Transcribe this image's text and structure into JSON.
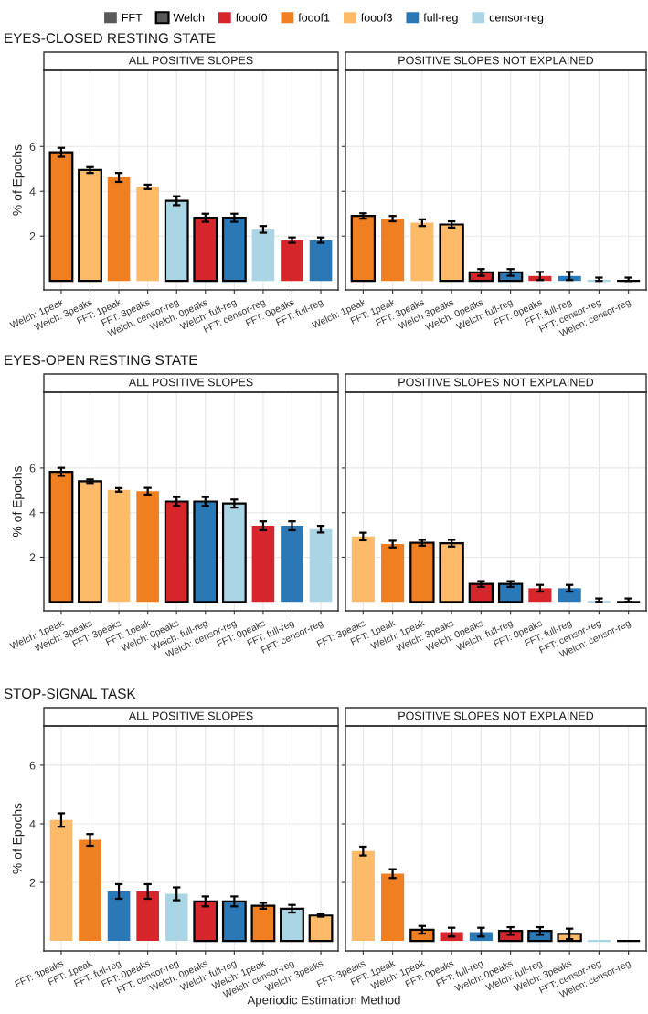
{
  "chart_data": [
    {
      "type": "other",
      "categories": [
        "FFT",
        "Welch",
        "fooof0",
        "fooof1",
        "fooof3",
        "full-reg",
        "censor-reg"
      ],
      "colors": [
        "#595959",
        "#595959",
        "#d7262b",
        "#f07f22",
        "#fdbb6a",
        "#2b78b6",
        "#a9d5e5"
      ]
    },
    {
      "type": "bar",
      "subtitle": "EYES-CLOSED RESTING STATE",
      "title": "ALL POSITIVE SLOPES",
      "ylabel": "% of Epochs",
      "grid": true,
      "ylim": [
        -0.4,
        9.4
      ],
      "yticks": [
        2,
        4,
        6
      ],
      "categories": [
        "Welch: 1peak",
        "Welch: 3peaks",
        "FFT: 1peak",
        "FFT: 3peaks",
        "Welch: censor-reg",
        "Welch: 0peaks",
        "Welch: full-reg",
        "FFT: censor-reg",
        "FFT: 0peaks",
        "FFT: full-reg"
      ],
      "series": [
        {
          "values": [
            null,
            null,
            4.62,
            4.2,
            null,
            null,
            null,
            2.3,
            1.82,
            1.82
          ],
          "colors": [
            null,
            null,
            "#f07f22",
            "#fdbb6a",
            null,
            null,
            null,
            "#a9d5e5",
            "#d7262b",
            "#2b78b6"
          ],
          "errors": [
            null,
            null,
            0.2,
            0.1,
            null,
            null,
            null,
            0.15,
            0.12,
            0.12
          ]
        },
        {
          "values": [
            5.74,
            4.95,
            null,
            null,
            3.58,
            2.82,
            2.82,
            null,
            null,
            null
          ],
          "colors": [
            "#f07f22",
            "#fdbb6a",
            null,
            null,
            "#a9d5e5",
            "#d7262b",
            "#2b78b6",
            null,
            null,
            null
          ],
          "errors": [
            0.2,
            0.13,
            null,
            null,
            0.2,
            0.18,
            0.18,
            null,
            null,
            null
          ]
        }
      ]
    },
    {
      "type": "bar",
      "title": "POSITIVE SLOPES NOT EXPLAINED",
      "grid": true,
      "tick_labels": "x",
      "ylim": [
        -0.4,
        9.4
      ],
      "yticks": [
        2,
        4,
        6
      ],
      "categories": [
        "Welch: 1peak",
        "FFT: 1peak",
        "FFT: 3peaks",
        "Welch 3peaks",
        "Welch: 0peaks",
        "Welch: full-reg",
        "FFT: 0peaks",
        "FFT: full-reg",
        "FFT: censor-reg",
        "Welch: censor-reg"
      ],
      "series": [
        {
          "values": [
            null,
            2.78,
            2.6,
            null,
            null,
            null,
            0.22,
            0.22,
            0,
            null
          ],
          "colors": [
            null,
            "#f07f22",
            "#fdbb6a",
            null,
            null,
            null,
            "#d7262b",
            "#2b78b6",
            "#a9d5e5",
            null
          ],
          "errors": [
            null,
            0.12,
            0.15,
            null,
            null,
            null,
            0.18,
            0.18,
            [
              0,
              0.15
            ],
            null
          ]
        },
        {
          "values": [
            2.9,
            null,
            null,
            2.52,
            0.38,
            0.38,
            null,
            null,
            null,
            0
          ],
          "colors": [
            "#f07f22",
            null,
            null,
            "#fdbb6a",
            "#d7262b",
            "#2b78b6",
            null,
            null,
            null,
            "#000000"
          ],
          "errors": [
            0.12,
            null,
            null,
            0.14,
            0.15,
            0.15,
            null,
            null,
            null,
            [
              0,
              0.15
            ]
          ]
        }
      ]
    },
    {
      "type": "bar",
      "subtitle": "EYES-OPEN RESTING STATE",
      "title": "ALL POSITIVE SLOPES",
      "ylabel": "% of Epochs",
      "grid": true,
      "ylim": [
        -0.4,
        9.4
      ],
      "yticks": [
        2,
        4,
        6
      ],
      "categories": [
        "Welch: 1peak",
        "Welch: 3peaks",
        "FFT: 3peaks",
        "FFT: 1peak",
        "Welch: 0peaks",
        "Welch: full-reg",
        "Welch: censor-reg",
        "FFT: 0peaks",
        "FFT: full-reg",
        "FFT: censor-reg"
      ],
      "series": [
        {
          "values": [
            null,
            null,
            5.02,
            4.96,
            null,
            null,
            null,
            3.41,
            3.41,
            3.26
          ],
          "colors": [
            null,
            null,
            "#fdbb6a",
            "#f07f22",
            null,
            null,
            null,
            "#d7262b",
            "#2b78b6",
            "#a9d5e5"
          ],
          "errors": [
            null,
            null,
            0.08,
            0.15,
            null,
            null,
            null,
            0.2,
            0.2,
            0.15
          ]
        },
        {
          "values": [
            5.83,
            5.41,
            null,
            null,
            4.5,
            4.5,
            4.41,
            null,
            null,
            null
          ],
          "colors": [
            "#f07f22",
            "#fdbb6a",
            null,
            null,
            "#d7262b",
            "#2b78b6",
            "#a9d5e5",
            null,
            null,
            null
          ],
          "errors": [
            0.18,
            0.08,
            null,
            null,
            0.2,
            0.2,
            0.18,
            null,
            null,
            null
          ]
        }
      ]
    },
    {
      "type": "bar",
      "title": "POSITIVE SLOPES NOT EXPLAINED",
      "grid": true,
      "tick_labels": "x",
      "ylim": [
        -0.4,
        9.4
      ],
      "yticks": [
        2,
        4,
        6
      ],
      "categories": [
        "FFT: 3peaks",
        "FFT: 1peak",
        "Welch: 1peak",
        "Welch: 3peaks",
        "Welch: 0peaks",
        "Welch: full-reg",
        "FFT: 0peaks",
        "FFT: full-reg",
        "FFT: censor-reg",
        "Welch: censor-reg"
      ],
      "series": [
        {
          "values": [
            2.93,
            2.59,
            null,
            null,
            null,
            null,
            0.61,
            0.61,
            0,
            null
          ],
          "colors": [
            "#fdbb6a",
            "#f07f22",
            null,
            null,
            null,
            null,
            "#d7262b",
            "#2b78b6",
            "#a9d5e5",
            null
          ],
          "errors": [
            0.17,
            0.15,
            null,
            null,
            null,
            null,
            0.15,
            0.15,
            [
              0,
              0.15
            ],
            null
          ]
        },
        {
          "values": [
            null,
            null,
            2.65,
            2.63,
            0.8,
            0.8,
            null,
            null,
            null,
            0
          ],
          "colors": [
            null,
            null,
            "#f07f22",
            "#fdbb6a",
            "#d7262b",
            "#2b78b6",
            null,
            null,
            null,
            "#000000"
          ],
          "errors": [
            null,
            null,
            0.13,
            0.15,
            0.13,
            0.13,
            null,
            null,
            null,
            [
              0,
              0.15
            ]
          ]
        }
      ]
    },
    {
      "type": "bar",
      "subtitle": "STOP-SIGNAL TASK",
      "title": "ALL POSITIVE SLOPES",
      "ylabel": "% of Epochs",
      "xlabel": "Aperiodic Estimation Method",
      "grid": true,
      "ylim": [
        -0.34,
        7.34
      ],
      "yticks": [
        2,
        4,
        6
      ],
      "categories": [
        "FFT: 3peaks",
        "FFT: 1peak",
        "FFT: full-reg",
        "FFT: 0peaks",
        "FFT: censor-reg",
        "Welch: 0peaks",
        "Welch: full-reg",
        "Welch: 1peak",
        "Welch: censor-reg",
        "Welch: 3peaks"
      ],
      "series": [
        {
          "values": [
            4.13,
            3.45,
            1.69,
            1.69,
            1.61,
            null,
            null,
            null,
            null,
            null
          ],
          "colors": [
            "#fdbb6a",
            "#f07f22",
            "#2b78b6",
            "#d7262b",
            "#a9d5e5",
            null,
            null,
            null,
            null,
            null
          ],
          "errors": [
            0.23,
            0.2,
            0.25,
            0.25,
            0.22,
            null,
            null,
            null,
            null,
            null
          ]
        },
        {
          "values": [
            null,
            null,
            null,
            null,
            null,
            1.35,
            1.35,
            1.2,
            1.1,
            0.87
          ],
          "colors": [
            null,
            null,
            null,
            null,
            null,
            "#d7262b",
            "#2b78b6",
            "#f07f22",
            "#a9d5e5",
            "#fdbb6a"
          ],
          "errors": [
            null,
            null,
            null,
            null,
            null,
            0.17,
            0.17,
            0.1,
            0.13,
            0.04
          ]
        }
      ]
    },
    {
      "type": "bar",
      "title": "POSITIVE SLOPES NOT EXPLAINED",
      "grid": true,
      "tick_labels": "x",
      "ylim": [
        -0.34,
        7.34
      ],
      "yticks": [
        2,
        4,
        6
      ],
      "categories": [
        "FFT: 3peaks",
        "FFT: 1peak",
        "Welch: 1peak",
        "FFT: 0peaks",
        "FFT: full-reg",
        "Welch: 0peaks",
        "Welch: full-reg",
        "Welch: 3peaks",
        "FFT: censor-reg",
        "Welch: censor-reg"
      ],
      "series": [
        {
          "values": [
            3.07,
            2.3,
            null,
            0.3,
            0.3,
            null,
            null,
            null,
            0,
            null
          ],
          "colors": [
            "#fdbb6a",
            "#f07f22",
            null,
            "#d7262b",
            "#2b78b6",
            null,
            null,
            null,
            "#a9d5e5",
            null
          ],
          "errors": [
            0.15,
            0.15,
            null,
            0.15,
            0.15,
            null,
            null,
            null,
            null,
            null
          ]
        },
        {
          "values": [
            null,
            null,
            0.38,
            null,
            null,
            0.34,
            0.34,
            0.24,
            null,
            0
          ],
          "colors": [
            null,
            null,
            "#f07f22",
            null,
            null,
            "#d7262b",
            "#2b78b6",
            "#fdbb6a",
            null,
            "#000000"
          ],
          "errors": [
            null,
            null,
            0.13,
            null,
            null,
            0.13,
            0.13,
            0.18,
            null,
            null
          ]
        }
      ]
    }
  ]
}
